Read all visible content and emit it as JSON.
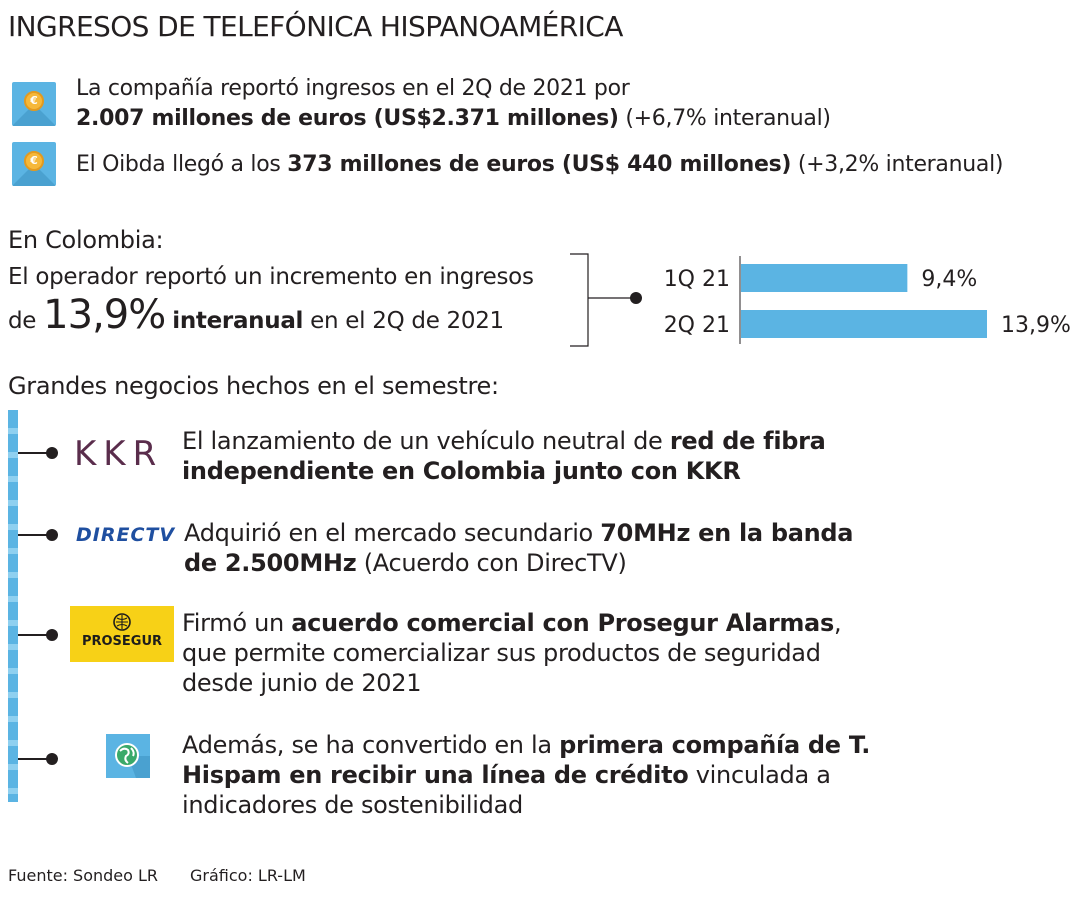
{
  "title": "INGRESOS DE TELEFÓNICA HISPANOAMÉRICA",
  "summary": {
    "line1_a": "La compañía reportó ingresos en el 2Q de 2021 por",
    "line1_b_bold": "2.007 millones de euros (US$2.371 millones)",
    "line1_b_rest": "(+6,7% interanual)",
    "line2_a": "El Oibda llegó a los",
    "line2_bold": "373 millones de euros (US$ 440 millones)",
    "line2_rest": "(+3,2% interanual)",
    "coin_symbol": "€"
  },
  "colombia": {
    "heading": "En Colombia:",
    "text_line1": "El operador reportó un incremento en ingresos",
    "text_de": "de",
    "big_value": "13,9%",
    "bold_word": "interanual",
    "text_end": "en el 2Q de 2021"
  },
  "chart_data": {
    "type": "bar",
    "orientation": "horizontal",
    "title": "",
    "categories": [
      "1Q 21",
      "2Q 21"
    ],
    "values": [
      9.4,
      13.9
    ],
    "value_labels": [
      "9,4%",
      "13,9%"
    ],
    "unit": "%",
    "xlim": [
      0,
      13.9
    ],
    "bar_color": "#5bb4e3"
  },
  "deals": {
    "heading": "Grandes negocios hechos en el semestre:",
    "items": [
      {
        "logo_text": "KKR",
        "parts": [
          {
            "t": "El lanzamiento de un vehículo neutral de ",
            "b": false
          },
          {
            "t": "red de fibra",
            "b": true
          }
        ],
        "parts2": [
          {
            "t": "independiente en Colombia junto con KKR",
            "b": true
          }
        ]
      },
      {
        "logo_text": "DIRECTV",
        "parts": [
          {
            "t": "Adquirió en el mercado secundario ",
            "b": false
          },
          {
            "t": "70MHz en la banda",
            "b": true
          }
        ],
        "parts2": [
          {
            "t": "de 2.500MHz",
            "b": true
          },
          {
            "t": " (Acuerdo con DirecTV)",
            "b": false
          }
        ]
      },
      {
        "logo_text": "PROSEGUR",
        "parts": [
          {
            "t": "Firmó un ",
            "b": false
          },
          {
            "t": "acuerdo comercial con Prosegur Alarmas",
            "b": true
          },
          {
            "t": ",",
            "b": false
          }
        ],
        "parts2": [
          {
            "t": "que permite comercializar sus productos de seguridad",
            "b": false
          }
        ],
        "parts3": [
          {
            "t": "desde junio de 2021",
            "b": false
          }
        ]
      },
      {
        "logo_text": "",
        "parts": [
          {
            "t": "Además, se ha convertido en la ",
            "b": false
          },
          {
            "t": "primera compañía de T.",
            "b": true
          }
        ],
        "parts2": [
          {
            "t": "Hispam en recibir una línea de crédito",
            "b": true
          },
          {
            "t": " vinculada a",
            "b": false
          }
        ],
        "parts3": [
          {
            "t": "indicadores de sostenibilidad",
            "b": false
          }
        ]
      }
    ]
  },
  "footer": {
    "source": "Fuente: Sondeo LR",
    "credit": "Gráfico: LR-LM"
  }
}
